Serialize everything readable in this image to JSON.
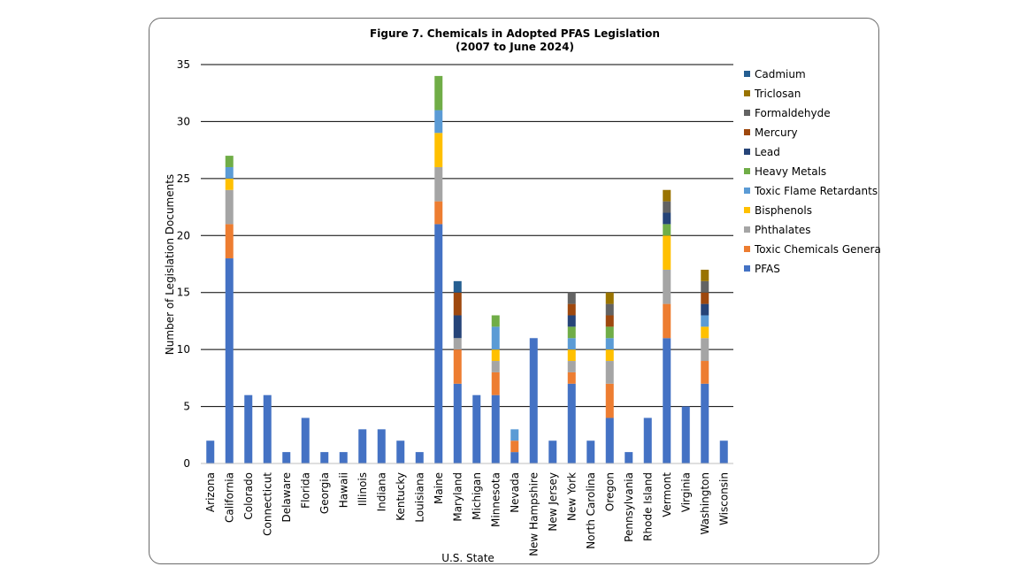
{
  "chart_data": {
    "type": "bar",
    "stacked": true,
    "title": "Figure 7. Chemicals in Adopted PFAS Legislation",
    "subtitle": "(2007 to June 2024)",
    "xlabel": "U.S. State",
    "ylabel": "Number of Legislation Documents",
    "ylim": [
      0,
      35
    ],
    "yticks": [
      0,
      5,
      10,
      15,
      20,
      25,
      30,
      35
    ],
    "grid": true,
    "legend_position": "right",
    "categories": [
      "Arizona",
      "California",
      "Colorado",
      "Connecticut",
      "Delaware",
      "Florida",
      "Georgia",
      "Hawaii",
      "Illinois",
      "Indiana",
      "Kentucky",
      "Louisiana",
      "Maine",
      "Maryland",
      "Michigan",
      "Minnesota",
      "Nevada",
      "New Hampshire",
      "New Jersey",
      "New York",
      "North Carolina",
      "Oregon",
      "Pennsylvania",
      "Rhode Island",
      "Vermont",
      "Virginia",
      "Washington",
      "Wisconsin"
    ],
    "series": [
      {
        "name": "PFAS",
        "color": "#4472C4",
        "values": [
          2,
          18,
          6,
          6,
          1,
          4,
          1,
          1,
          3,
          3,
          2,
          1,
          21,
          7,
          6,
          6,
          1,
          11,
          2,
          7,
          2,
          4,
          1,
          4,
          11,
          5,
          7,
          2
        ]
      },
      {
        "name": "Toxic Chemicals General",
        "color": "#ED7D31",
        "values": [
          0,
          3,
          0,
          0,
          0,
          0,
          0,
          0,
          0,
          0,
          0,
          0,
          2,
          3,
          0,
          2,
          1,
          0,
          0,
          1,
          0,
          3,
          0,
          0,
          3,
          0,
          2,
          0
        ]
      },
      {
        "name": "Phthalates",
        "color": "#A5A5A5",
        "values": [
          0,
          3,
          0,
          0,
          0,
          0,
          0,
          0,
          0,
          0,
          0,
          0,
          3,
          1,
          0,
          1,
          0,
          0,
          0,
          1,
          0,
          2,
          0,
          0,
          3,
          0,
          2,
          0
        ]
      },
      {
        "name": "Bisphenols",
        "color": "#FFC000",
        "values": [
          0,
          1,
          0,
          0,
          0,
          0,
          0,
          0,
          0,
          0,
          0,
          0,
          3,
          0,
          0,
          1,
          0,
          0,
          0,
          1,
          0,
          1,
          0,
          0,
          3,
          0,
          1,
          0
        ]
      },
      {
        "name": "Toxic Flame Retardants",
        "color": "#5B9BD5",
        "values": [
          0,
          1,
          0,
          0,
          0,
          0,
          0,
          0,
          0,
          0,
          0,
          0,
          2,
          0,
          0,
          2,
          1,
          0,
          0,
          1,
          0,
          1,
          0,
          0,
          0,
          0,
          1,
          0
        ]
      },
      {
        "name": "Heavy Metals",
        "color": "#70AD47",
        "values": [
          0,
          1,
          0,
          0,
          0,
          0,
          0,
          0,
          0,
          0,
          0,
          0,
          3,
          0,
          0,
          1,
          0,
          0,
          0,
          1,
          0,
          1,
          0,
          0,
          1,
          0,
          0,
          0
        ]
      },
      {
        "name": "Lead",
        "color": "#264478",
        "values": [
          0,
          0,
          0,
          0,
          0,
          0,
          0,
          0,
          0,
          0,
          0,
          0,
          0,
          2,
          0,
          0,
          0,
          0,
          0,
          1,
          0,
          0,
          0,
          0,
          1,
          0,
          1,
          0
        ]
      },
      {
        "name": "Mercury",
        "color": "#9E480E",
        "values": [
          0,
          0,
          0,
          0,
          0,
          0,
          0,
          0,
          0,
          0,
          0,
          0,
          0,
          2,
          0,
          0,
          0,
          0,
          0,
          1,
          0,
          1,
          0,
          0,
          0,
          0,
          1,
          0
        ]
      },
      {
        "name": "Formaldehyde",
        "color": "#636363",
        "values": [
          0,
          0,
          0,
          0,
          0,
          0,
          0,
          0,
          0,
          0,
          0,
          0,
          0,
          0,
          0,
          0,
          0,
          0,
          0,
          1,
          0,
          1,
          0,
          0,
          1,
          0,
          1,
          0
        ]
      },
      {
        "name": "Triclosan",
        "color": "#997300",
        "values": [
          0,
          0,
          0,
          0,
          0,
          0,
          0,
          0,
          0,
          0,
          0,
          0,
          0,
          0,
          0,
          0,
          0,
          0,
          0,
          0,
          0,
          1,
          0,
          0,
          1,
          0,
          1,
          0
        ]
      },
      {
        "name": "Cadmium",
        "color": "#255E91",
        "values": [
          0,
          0,
          0,
          0,
          0,
          0,
          0,
          0,
          0,
          0,
          0,
          0,
          0,
          1,
          0,
          0,
          0,
          0,
          0,
          0,
          0,
          0,
          0,
          0,
          0,
          0,
          0,
          0
        ]
      }
    ]
  }
}
